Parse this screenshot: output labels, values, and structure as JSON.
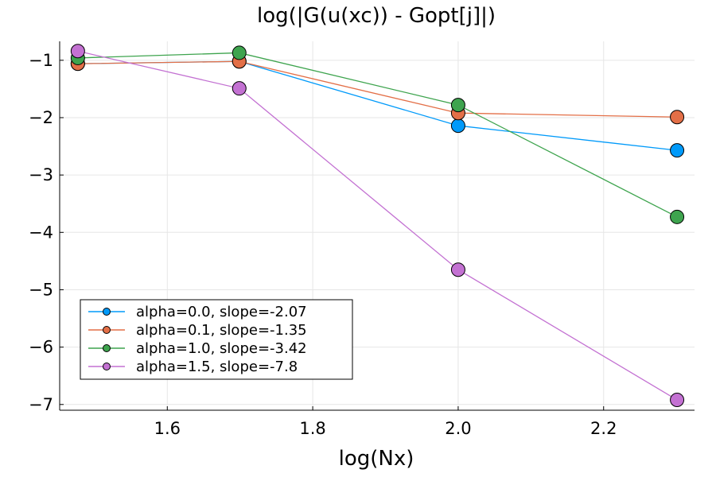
{
  "chart_data": {
    "type": "line",
    "title": "log(|G(u(xc)) - Gopt[j]|)",
    "xlabel": "log(Nx)",
    "ylabel": "",
    "x": [
      1.477,
      1.699,
      2.0,
      2.301
    ],
    "xlim": [
      1.452,
      2.325
    ],
    "ylim": [
      -7.1,
      -0.67
    ],
    "xticks": [
      1.6,
      1.8,
      2.0,
      2.2
    ],
    "xtick_labels": [
      "1.6",
      "1.8",
      "2.0",
      "2.2"
    ],
    "yticks": [
      -1,
      -2,
      -3,
      -4,
      -5,
      -6,
      -7
    ],
    "ytick_labels": [
      "−1",
      "−2",
      "−3",
      "−4",
      "−5",
      "−6",
      "−7"
    ],
    "grid": true,
    "legend_position": "bottom-left",
    "markers": true,
    "series": [
      {
        "name": "alpha=0.0, slope=-2.07",
        "color": "#009AFA",
        "values": [
          -1.06,
          -1.02,
          -2.14,
          -2.57
        ]
      },
      {
        "name": "alpha=0.1, slope=-1.35",
        "color": "#E36F47",
        "values": [
          -1.06,
          -1.02,
          -1.92,
          -1.99
        ]
      },
      {
        "name": "alpha=1.0, slope=-3.42",
        "color": "#3EA44E",
        "values": [
          -0.96,
          -0.87,
          -1.78,
          -3.73
        ]
      },
      {
        "name": "alpha=1.5, slope=-7.8",
        "color": "#C371D2",
        "values": [
          -0.84,
          -1.49,
          -4.65,
          -6.92
        ]
      }
    ]
  }
}
